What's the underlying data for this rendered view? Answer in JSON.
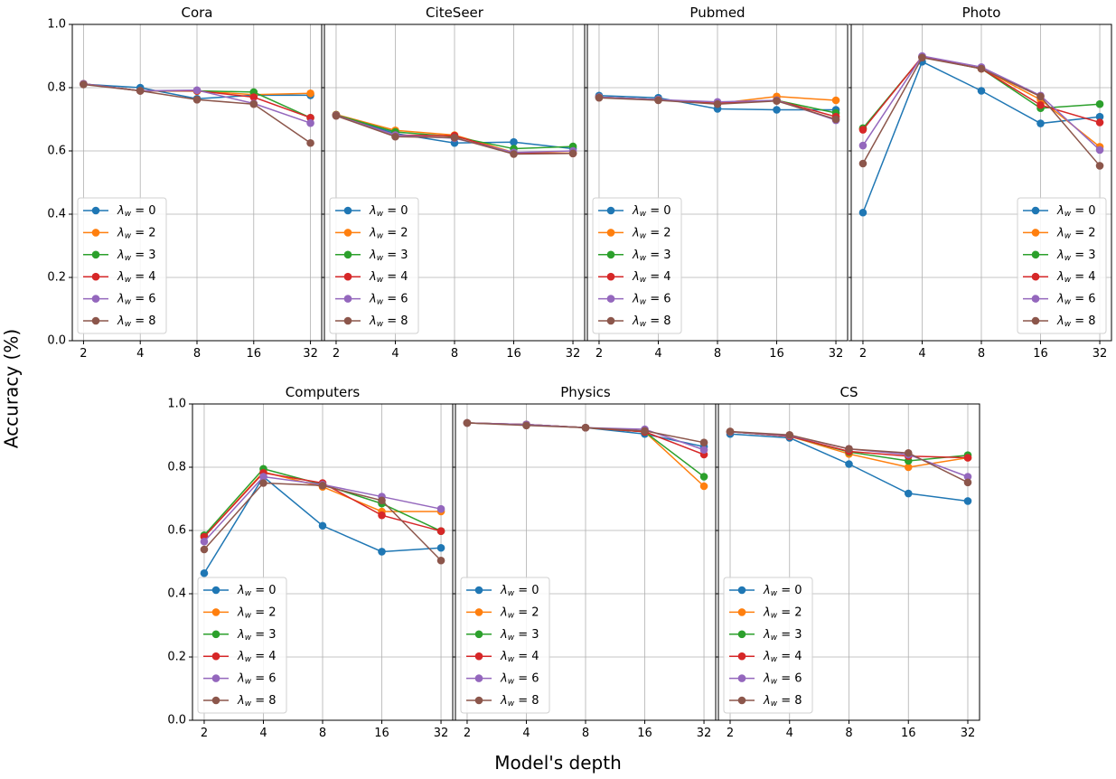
{
  "figure": {
    "ylabel": "Accuracy (%)",
    "xlabel": "Model's depth"
  },
  "legend_labels": [
    "λw = 0",
    "λw = 2",
    "λw = 3",
    "λw = 4",
    "λw = 6",
    "λw = 8"
  ],
  "colors": [
    "#1f77b4",
    "#ff7f0e",
    "#2ca02c",
    "#d62728",
    "#9467bd",
    "#8c564b"
  ],
  "chart_data": [
    {
      "type": "line",
      "title": "Cora",
      "categories": [
        "2",
        "4",
        "8",
        "16",
        "32"
      ],
      "yticks": [
        "0.0",
        "0.2",
        "0.4",
        "0.6",
        "0.8",
        "1.0"
      ],
      "ylim": [
        0,
        1
      ],
      "grid": true,
      "legend_position": "lower-left",
      "series": [
        {
          "name": "λw = 0",
          "values": [
            0.811,
            0.8,
            0.765,
            0.776,
            0.776
          ]
        },
        {
          "name": "λw = 2",
          "values": [
            0.812,
            0.79,
            0.789,
            0.778,
            0.782
          ]
        },
        {
          "name": "λw = 3",
          "values": [
            0.812,
            0.79,
            0.79,
            0.786,
            0.705
          ]
        },
        {
          "name": "λw = 4",
          "values": [
            0.812,
            0.79,
            0.79,
            0.77,
            0.705
          ]
        },
        {
          "name": "λw = 6",
          "values": [
            0.812,
            0.79,
            0.792,
            0.75,
            0.688
          ]
        },
        {
          "name": "λw = 8",
          "values": [
            0.81,
            0.79,
            0.762,
            0.748,
            0.625
          ]
        }
      ]
    },
    {
      "type": "line",
      "title": "CiteSeer",
      "categories": [
        "2",
        "4",
        "8",
        "16",
        "32"
      ],
      "yticks": [
        "0.0",
        "0.2",
        "0.4",
        "0.6",
        "0.8",
        "1.0"
      ],
      "ylim": [
        0,
        1
      ],
      "grid": true,
      "legend_position": "lower-left",
      "series": [
        {
          "name": "λw = 0",
          "values": [
            0.713,
            0.655,
            0.625,
            0.628,
            0.607
          ]
        },
        {
          "name": "λw = 2",
          "values": [
            0.715,
            0.665,
            0.65,
            0.595,
            0.593
          ]
        },
        {
          "name": "λw = 3",
          "values": [
            0.714,
            0.66,
            0.645,
            0.607,
            0.614
          ]
        },
        {
          "name": "λw = 4",
          "values": [
            0.713,
            0.65,
            0.648,
            0.592,
            0.592
          ]
        },
        {
          "name": "λw = 6",
          "values": [
            0.712,
            0.65,
            0.64,
            0.595,
            0.6
          ]
        },
        {
          "name": "λw = 8",
          "values": [
            0.711,
            0.645,
            0.642,
            0.59,
            0.592
          ]
        }
      ]
    },
    {
      "type": "line",
      "title": "Pubmed",
      "categories": [
        "2",
        "4",
        "8",
        "16",
        "32"
      ],
      "yticks": [
        "0.0",
        "0.2",
        "0.4",
        "0.6",
        "0.8",
        "1.0"
      ],
      "ylim": [
        0,
        1
      ],
      "grid": true,
      "legend_position": "lower-left",
      "series": [
        {
          "name": "λw = 0",
          "values": [
            0.775,
            0.768,
            0.733,
            0.73,
            0.73
          ]
        },
        {
          "name": "λw = 2",
          "values": [
            0.77,
            0.762,
            0.75,
            0.772,
            0.76
          ]
        },
        {
          "name": "λw = 3",
          "values": [
            0.77,
            0.762,
            0.75,
            0.76,
            0.72
          ]
        },
        {
          "name": "λw = 4",
          "values": [
            0.77,
            0.762,
            0.75,
            0.76,
            0.708
          ]
        },
        {
          "name": "λw = 6",
          "values": [
            0.77,
            0.762,
            0.755,
            0.76,
            0.697
          ]
        },
        {
          "name": "λw = 8",
          "values": [
            0.768,
            0.76,
            0.748,
            0.758,
            0.7
          ]
        }
      ]
    },
    {
      "type": "line",
      "title": "Photo",
      "categories": [
        "2",
        "4",
        "8",
        "16",
        "32"
      ],
      "yticks": [
        "0.0",
        "0.2",
        "0.4",
        "0.6",
        "0.8",
        "1.0"
      ],
      "ylim": [
        0,
        1
      ],
      "grid": true,
      "legend_position": "lower-right",
      "series": [
        {
          "name": "λw = 0",
          "values": [
            0.405,
            0.882,
            0.79,
            0.687,
            0.708
          ]
        },
        {
          "name": "λw = 2",
          "values": [
            0.67,
            0.897,
            0.86,
            0.762,
            0.613
          ]
        },
        {
          "name": "λw = 3",
          "values": [
            0.672,
            0.897,
            0.86,
            0.735,
            0.748
          ]
        },
        {
          "name": "λw = 4",
          "values": [
            0.667,
            0.898,
            0.86,
            0.745,
            0.69
          ]
        },
        {
          "name": "λw = 6",
          "values": [
            0.617,
            0.9,
            0.865,
            0.775,
            0.603
          ]
        },
        {
          "name": "λw = 8",
          "values": [
            0.56,
            0.895,
            0.86,
            0.772,
            0.553
          ]
        }
      ]
    },
    {
      "type": "line",
      "title": "Computers",
      "categories": [
        "2",
        "4",
        "8",
        "16",
        "32"
      ],
      "yticks": [
        "0.0",
        "0.2",
        "0.4",
        "0.6",
        "0.8",
        "1.0"
      ],
      "ylim": [
        0,
        1
      ],
      "grid": true,
      "legend_position": "lower-left",
      "series": [
        {
          "name": "λw = 0",
          "values": [
            0.465,
            0.77,
            0.615,
            0.533,
            0.545
          ]
        },
        {
          "name": "λw = 2",
          "values": [
            0.58,
            0.785,
            0.738,
            0.66,
            0.66
          ]
        },
        {
          "name": "λw = 3",
          "values": [
            0.585,
            0.795,
            0.745,
            0.685,
            0.598
          ]
        },
        {
          "name": "λw = 4",
          "values": [
            0.58,
            0.782,
            0.75,
            0.648,
            0.598
          ]
        },
        {
          "name": "λw = 6",
          "values": [
            0.565,
            0.77,
            0.745,
            0.707,
            0.668
          ]
        },
        {
          "name": "λw = 8",
          "values": [
            0.54,
            0.75,
            0.742,
            0.695,
            0.505
          ]
        }
      ]
    },
    {
      "type": "line",
      "title": "Physics",
      "categories": [
        "2",
        "4",
        "8",
        "16",
        "32"
      ],
      "yticks": [
        "0.0",
        "0.2",
        "0.4",
        "0.6",
        "0.8",
        "1.0"
      ],
      "ylim": [
        0,
        1
      ],
      "grid": true,
      "legend_position": "lower-left",
      "series": [
        {
          "name": "λw = 0",
          "values": [
            0.94,
            0.935,
            0.925,
            0.905,
            0.865
          ]
        },
        {
          "name": "λw = 2",
          "values": [
            0.94,
            0.935,
            0.925,
            0.912,
            0.74
          ]
        },
        {
          "name": "λw = 3",
          "values": [
            0.94,
            0.935,
            0.925,
            0.912,
            0.77
          ]
        },
        {
          "name": "λw = 4",
          "values": [
            0.94,
            0.935,
            0.925,
            0.912,
            0.84
          ]
        },
        {
          "name": "λw = 6",
          "values": [
            0.94,
            0.935,
            0.925,
            0.92,
            0.855
          ]
        },
        {
          "name": "λw = 8",
          "values": [
            0.94,
            0.932,
            0.925,
            0.915,
            0.878
          ]
        }
      ]
    },
    {
      "type": "line",
      "title": "CS",
      "categories": [
        "2",
        "4",
        "8",
        "16",
        "32"
      ],
      "yticks": [
        "0.0",
        "0.2",
        "0.4",
        "0.6",
        "0.8",
        "1.0"
      ],
      "ylim": [
        0,
        1
      ],
      "grid": true,
      "legend_position": "lower-left",
      "series": [
        {
          "name": "λw = 0",
          "values": [
            0.905,
            0.893,
            0.81,
            0.717,
            0.693
          ]
        },
        {
          "name": "λw = 2",
          "values": [
            0.912,
            0.898,
            0.842,
            0.8,
            0.83
          ]
        },
        {
          "name": "λw = 3",
          "values": [
            0.912,
            0.898,
            0.848,
            0.82,
            0.838
          ]
        },
        {
          "name": "λw = 4",
          "values": [
            0.912,
            0.898,
            0.85,
            0.835,
            0.83
          ]
        },
        {
          "name": "λw = 6",
          "values": [
            0.912,
            0.9,
            0.858,
            0.84,
            0.77
          ]
        },
        {
          "name": "λw = 8",
          "values": [
            0.913,
            0.902,
            0.858,
            0.845,
            0.752
          ]
        }
      ]
    }
  ]
}
